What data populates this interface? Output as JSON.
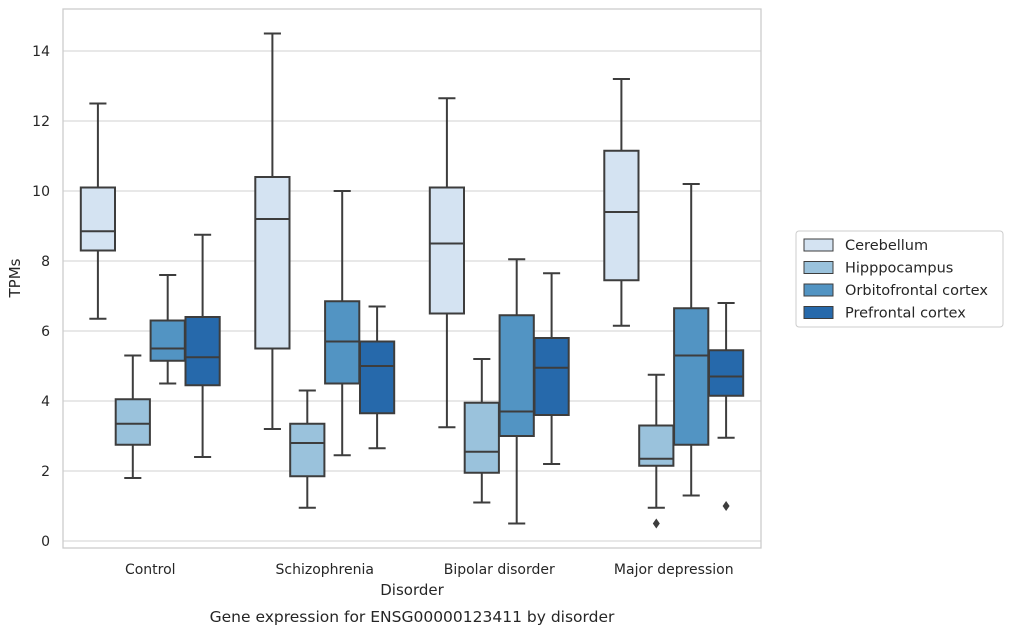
{
  "chart_data": {
    "type": "box",
    "caption": "Gene expression for ENSG00000123411 by disorder",
    "xlabel": "Disorder",
    "ylabel": "TPMs",
    "ylim": [
      -0.2,
      15.2
    ],
    "yticks": [
      0,
      2,
      4,
      6,
      8,
      10,
      12,
      14
    ],
    "grid": true,
    "legend_position": "right",
    "categories": [
      "Control",
      "Schizophrenia",
      "Bipolar disorder",
      "Major depression"
    ],
    "series": [
      {
        "name": "Cerebellum",
        "color": "#d4e3f2",
        "boxes": [
          {
            "whislo": 6.35,
            "q1": 8.3,
            "med": 8.85,
            "q3": 10.1,
            "whishi": 12.5,
            "fliers": []
          },
          {
            "whislo": 3.2,
            "q1": 5.5,
            "med": 9.2,
            "q3": 10.4,
            "whishi": 14.5,
            "fliers": []
          },
          {
            "whislo": 3.25,
            "q1": 6.5,
            "med": 8.5,
            "q3": 10.1,
            "whishi": 12.65,
            "fliers": []
          },
          {
            "whislo": 6.15,
            "q1": 7.45,
            "med": 9.4,
            "q3": 11.15,
            "whishi": 13.2,
            "fliers": []
          }
        ]
      },
      {
        "name": "Hipppocampus",
        "color": "#9ac2dc",
        "boxes": [
          {
            "whislo": 1.8,
            "q1": 2.75,
            "med": 3.35,
            "q3": 4.05,
            "whishi": 5.3,
            "fliers": []
          },
          {
            "whislo": 0.95,
            "q1": 1.85,
            "med": 2.8,
            "q3": 3.35,
            "whishi": 4.3,
            "fliers": []
          },
          {
            "whislo": 1.1,
            "q1": 1.95,
            "med": 2.55,
            "q3": 3.95,
            "whishi": 5.2,
            "fliers": []
          },
          {
            "whislo": 0.95,
            "q1": 2.15,
            "med": 2.35,
            "q3": 3.3,
            "whishi": 4.75,
            "fliers": [
              0.5
            ]
          }
        ]
      },
      {
        "name": "Orbitofrontal cortex",
        "color": "#5294c3",
        "boxes": [
          {
            "whislo": 4.5,
            "q1": 5.15,
            "med": 5.5,
            "q3": 6.3,
            "whishi": 7.6,
            "fliers": []
          },
          {
            "whislo": 2.45,
            "q1": 4.5,
            "med": 5.7,
            "q3": 6.85,
            "whishi": 10.0,
            "fliers": []
          },
          {
            "whislo": 0.5,
            "q1": 3.0,
            "med": 3.7,
            "q3": 6.45,
            "whishi": 8.05,
            "fliers": []
          },
          {
            "whislo": 1.3,
            "q1": 2.75,
            "med": 5.3,
            "q3": 6.65,
            "whishi": 10.2,
            "fliers": []
          }
        ]
      },
      {
        "name": "Prefrontal cortex",
        "color": "#2669ab",
        "boxes": [
          {
            "whislo": 2.4,
            "q1": 4.45,
            "med": 5.25,
            "q3": 6.4,
            "whishi": 8.75,
            "fliers": []
          },
          {
            "whislo": 2.65,
            "q1": 3.65,
            "med": 5.0,
            "q3": 5.7,
            "whishi": 6.7,
            "fliers": []
          },
          {
            "whislo": 2.2,
            "q1": 3.6,
            "med": 4.95,
            "q3": 5.8,
            "whishi": 7.65,
            "fliers": []
          },
          {
            "whislo": 2.95,
            "q1": 4.15,
            "med": 4.7,
            "q3": 5.45,
            "whishi": 6.8,
            "fliers": [
              1.0
            ]
          }
        ]
      }
    ]
  }
}
